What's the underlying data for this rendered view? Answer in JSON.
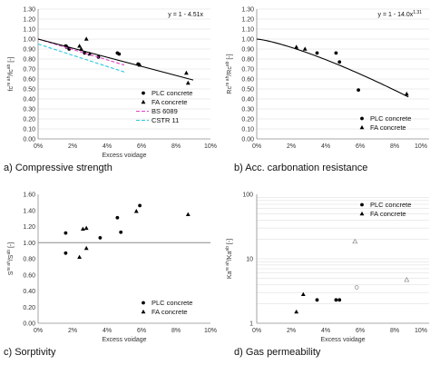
{
  "chart_data": [
    {
      "id": "a",
      "type": "scatter",
      "caption": "a) Compressive strength",
      "equation": "y = 1 - 4.51x",
      "xlabel": "Excess voidage",
      "ylabel": "fc^(re ah)/fc^(ab) [-]",
      "xlim": [
        0,
        10
      ],
      "ylim": [
        0,
        1.3
      ],
      "x_ticks": [
        "0%",
        "2%",
        "4%",
        "6%",
        "8%",
        "10%"
      ],
      "y_ticks": [
        "0.00",
        "0.10",
        "0.20",
        "0.30",
        "0.40",
        "0.50",
        "0.60",
        "0.70",
        "0.80",
        "0.90",
        "1.00",
        "1.10",
        "1.20",
        "1.30"
      ],
      "grid": true,
      "legend_position": "bottom-right",
      "series": [
        {
          "name": "PLC concrete",
          "marker": "circle",
          "points": [
            [
              1.6,
              0.93
            ],
            [
              1.8,
              0.9
            ],
            [
              2.7,
              0.86
            ],
            [
              3.5,
              0.82
            ],
            [
              4.6,
              0.86
            ],
            [
              4.7,
              0.85
            ],
            [
              5.8,
              0.75
            ]
          ]
        },
        {
          "name": "FA concrete",
          "marker": "triangle",
          "points": [
            [
              1.7,
              0.92
            ],
            [
              2.4,
              0.93
            ],
            [
              2.5,
              0.9
            ],
            [
              2.8,
              1.0
            ],
            [
              3.0,
              0.85
            ],
            [
              5.9,
              0.74
            ],
            [
              8.6,
              0.66
            ],
            [
              8.7,
              0.56
            ]
          ]
        },
        {
          "name": "BS 6089",
          "style": "dashed-magenta",
          "points": [
            [
              0,
              1.0
            ],
            [
              5,
              0.74
            ]
          ]
        },
        {
          "name": "CSTR 11",
          "style": "dashed-cyan",
          "points": [
            [
              0,
              0.95
            ],
            [
              5,
              0.67
            ]
          ]
        },
        {
          "name": "",
          "style": "fit-line",
          "points": [
            [
              0,
              1.0
            ],
            [
              9,
              0.59
            ]
          ]
        }
      ]
    },
    {
      "id": "b",
      "type": "scatter",
      "caption": "b) Acc. carbonation resistance",
      "equation": "y = 1 - 14.0x^1.31",
      "xlabel": "",
      "ylabel": "Rc^(re ah)/Rc^(ab) [-]",
      "xlim": [
        0,
        10
      ],
      "ylim": [
        0,
        1.3
      ],
      "x_ticks": [
        "0%",
        "2%",
        "4%",
        "6%",
        "8%",
        "10%"
      ],
      "y_ticks": [
        "0.00",
        "0.10",
        "0.20",
        "0.30",
        "0.40",
        "0.50",
        "0.60",
        "0.70",
        "0.80",
        "0.90",
        "1.00",
        "1.10",
        "1.20",
        "1.30"
      ],
      "grid": true,
      "legend_position": "bottom-right",
      "series": [
        {
          "name": "PLC concrete",
          "marker": "circle",
          "points": [
            [
              3.5,
              0.86
            ],
            [
              4.6,
              0.86
            ],
            [
              4.8,
              0.77
            ],
            [
              5.9,
              0.49
            ]
          ]
        },
        {
          "name": "FA concrete",
          "marker": "triangle",
          "points": [
            [
              2.3,
              0.92
            ],
            [
              2.8,
              0.9
            ],
            [
              8.7,
              0.45
            ]
          ]
        },
        {
          "name": "",
          "style": "fit-curve",
          "coef": 14.0,
          "power": 1.31,
          "xrange": [
            0,
            8.8
          ]
        }
      ]
    },
    {
      "id": "c",
      "type": "scatter",
      "caption": "c) Sorptivity",
      "xlabel": "Excess voidage",
      "ylabel": "S^(re ah)/S^(ab) [-]",
      "xlim": [
        0,
        10
      ],
      "ylim": [
        0,
        1.6
      ],
      "x_ticks": [
        "0%",
        "2%",
        "4%",
        "6%",
        "8%",
        "10%"
      ],
      "y_ticks": [
        "0.00",
        "0.20",
        "0.40",
        "0.60",
        "0.80",
        "1.00",
        "1.20",
        "1.40",
        "1.60"
      ],
      "grid": false,
      "reference_line": 1.0,
      "legend_position": "bottom-right",
      "series": [
        {
          "name": "PLC concrete",
          "marker": "circle",
          "points": [
            [
              1.6,
              1.12
            ],
            [
              1.6,
              0.87
            ],
            [
              3.6,
              1.06
            ],
            [
              4.6,
              1.31
            ],
            [
              4.8,
              1.13
            ],
            [
              5.9,
              1.46
            ]
          ]
        },
        {
          "name": "FA concrete",
          "marker": "triangle",
          "points": [
            [
              2.4,
              0.82
            ],
            [
              2.6,
              1.17
            ],
            [
              2.8,
              0.93
            ],
            [
              2.8,
              1.18
            ],
            [
              5.7,
              1.39
            ],
            [
              8.7,
              1.35
            ]
          ]
        }
      ]
    },
    {
      "id": "d",
      "type": "scatter",
      "caption": "d) Gas permeability",
      "xlabel": "Excess voidage",
      "ylabel": "Ka^(re ah)/Ka^(ab) [-]",
      "xlim": [
        0,
        10
      ],
      "ylim": [
        1,
        100
      ],
      "yscale": "log",
      "x_ticks": [
        "0%",
        "2%",
        "4%",
        "6%",
        "8%",
        "10%"
      ],
      "y_ticks": [
        "1",
        "10",
        "100"
      ],
      "grid": true,
      "legend_position": "top-right",
      "series": [
        {
          "name": "PLC concrete",
          "marker": "circle",
          "points": [
            [
              3.5,
              2.3
            ],
            [
              4.6,
              2.3
            ],
            [
              4.8,
              2.3
            ]
          ]
        },
        {
          "name": "FA concrete",
          "marker": "triangle",
          "points": [
            [
              2.3,
              1.5
            ],
            [
              2.7,
              2.8
            ]
          ]
        },
        {
          "name": "",
          "marker": "triangle-open",
          "points": [
            [
              5.7,
              18.5
            ],
            [
              8.7,
              4.7
            ]
          ]
        },
        {
          "name": "",
          "marker": "circle-open",
          "points": [
            [
              5.8,
              3.6
            ]
          ]
        }
      ]
    }
  ]
}
